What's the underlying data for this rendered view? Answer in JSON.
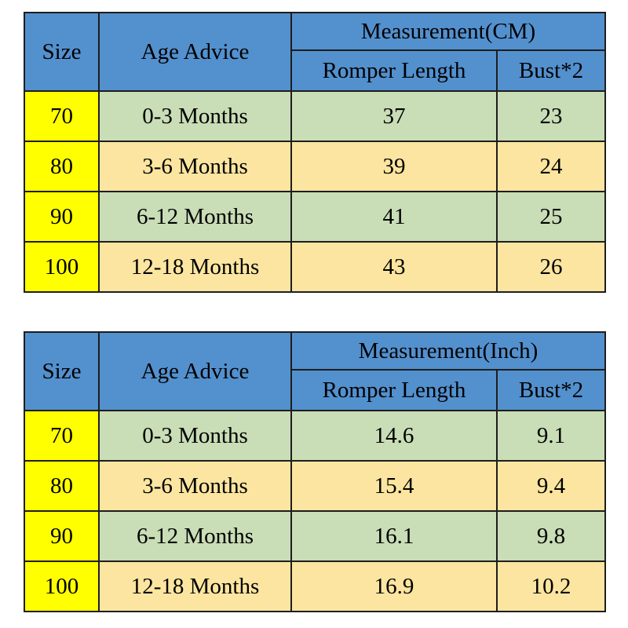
{
  "colors": {
    "header_bg": "#5390ce",
    "size_col_bg": "#ffff00",
    "row_green_bg": "#c9ddb6",
    "row_tan_bg": "#fbe5a0",
    "border": "#1d1d1d",
    "text": "#000000"
  },
  "chart_data": [
    {
      "type": "table",
      "title": "Measurement(CM)",
      "columns": [
        "Size",
        "Age Advice",
        "Romper Length",
        "Bust*2"
      ],
      "rows": [
        [
          "70",
          "0-3 Months",
          "37",
          "23"
        ],
        [
          "80",
          "3-6 Months",
          "39",
          "24"
        ],
        [
          "90",
          "6-12 Months",
          "41",
          "25"
        ],
        [
          "100",
          "12-18 Months",
          "43",
          "26"
        ]
      ]
    },
    {
      "type": "table",
      "title": "Measurement(Inch)",
      "columns": [
        "Size",
        "Age Advice",
        "Romper Length",
        "Bust*2"
      ],
      "rows": [
        [
          "70",
          "0-3 Months",
          "14.6",
          "9.1"
        ],
        [
          "80",
          "3-6 Months",
          "15.4",
          "9.4"
        ],
        [
          "90",
          "6-12 Months",
          "16.1",
          "9.8"
        ],
        [
          "100",
          "12-18 Months",
          "16.9",
          "10.2"
        ]
      ]
    }
  ]
}
